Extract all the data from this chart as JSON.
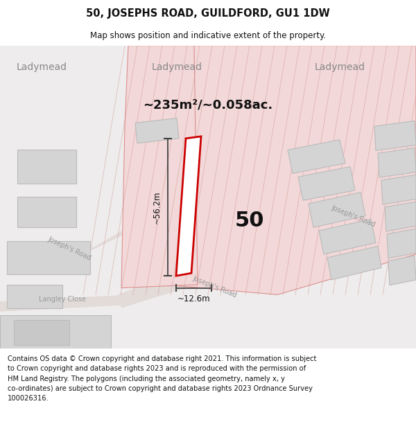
{
  "title": "50, JOSEPHS ROAD, GUILDFORD, GU1 1DW",
  "subtitle": "Map shows position and indicative extent of the property.",
  "footer": "Contains OS data © Crown copyright and database right 2021. This information is subject\nto Crown copyright and database rights 2023 and is reproduced with the permission of\nHM Land Registry. The polygons (including the associated geometry, namely x, y\nco-ordinates) are subject to Crown copyright and database rights 2023 Ordnance Survey\n100026316.",
  "area_label": "~235m²/~0.058ac.",
  "width_label": "~12.6m",
  "height_label": "~56.2m",
  "number_label": "50",
  "map_bg": "#eeecec",
  "building_fill": "#d4d4d4",
  "building_edge": "#bbbbbb",
  "red_outline": "#cc0000",
  "red_light_fill": "#f2d8d8",
  "red_light_edge": "#dd9090",
  "road_fill": "#e2dbd8",
  "title_color": "#111111",
  "footer_color": "#111111"
}
